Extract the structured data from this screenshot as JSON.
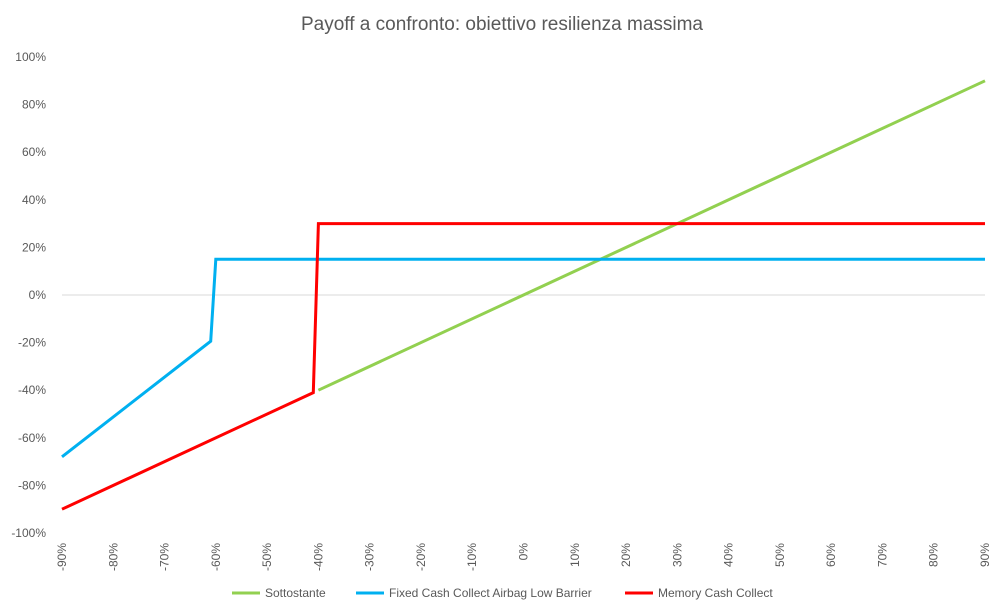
{
  "chart_data": {
    "type": "line",
    "title": "Payoff a confronto: obiettivo resilienza massima",
    "xlabel": "",
    "ylabel": "",
    "x_ticks": [
      "-90%",
      "-80%",
      "-70%",
      "-60%",
      "-50%",
      "-40%",
      "-30%",
      "-20%",
      "-10%",
      "0%",
      "10%",
      "20%",
      "30%",
      "40%",
      "50%",
      "60%",
      "70%",
      "80%",
      "90%"
    ],
    "y_ticks": [
      "100%",
      "80%",
      "60%",
      "40%",
      "20%",
      "0%",
      "-20%",
      "-40%",
      "-60%",
      "-80%",
      "-100%"
    ],
    "xlim": [
      -90,
      90
    ],
    "ylim": [
      -100,
      100
    ],
    "grid": "horizontal zero line only",
    "legend_position": "bottom",
    "series": [
      {
        "name": "Sottostante",
        "color": "#92D050",
        "points": [
          [
            -40,
            -40
          ],
          [
            90,
            90
          ]
        ]
      },
      {
        "name": "Fixed Cash Collect Airbag Low Barrier",
        "color": "#00B0F0",
        "points": [
          [
            -90,
            -68
          ],
          [
            -61,
            -19.4
          ],
          [
            -60,
            15
          ],
          [
            90,
            15
          ]
        ]
      },
      {
        "name": "Memory Cash Collect",
        "color": "#FF0000",
        "points": [
          [
            -90,
            -90
          ],
          [
            -41,
            -41
          ],
          [
            -40,
            30
          ],
          [
            90,
            30
          ]
        ]
      }
    ]
  }
}
